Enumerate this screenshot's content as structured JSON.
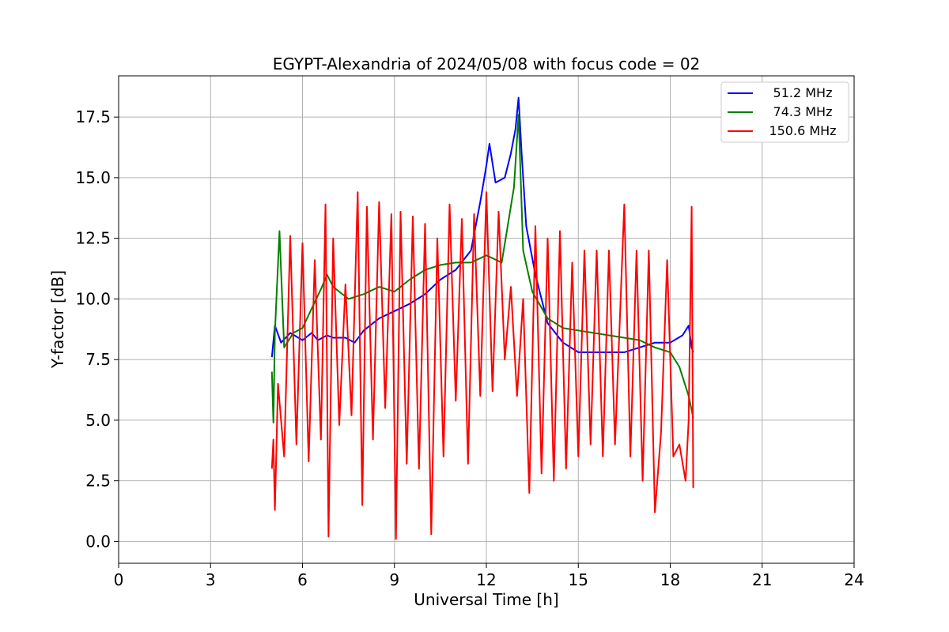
{
  "chart_data": {
    "type": "line",
    "title": "EGYPT-Alexandria of 2024/05/08 with focus code = 02",
    "xlabel": "Universal Time [h]",
    "ylabel": "Y-factor [dB]",
    "xlim": [
      0,
      24
    ],
    "ylim": [
      -0.9,
      19.2
    ],
    "xticks": [
      "0",
      "3",
      "6",
      "9",
      "12",
      "15",
      "18",
      "21",
      "24"
    ],
    "yticks": [
      "0.0",
      "2.5",
      "5.0",
      "7.5",
      "10.0",
      "12.5",
      "15.0",
      "17.5"
    ],
    "grid": true,
    "legend_position": "top-right",
    "series": [
      {
        "name": "51.2 MHz",
        "color": "#0000ff",
        "points": [
          [
            5.0,
            7.6
          ],
          [
            5.1,
            8.9
          ],
          [
            5.3,
            8.2
          ],
          [
            5.6,
            8.6
          ],
          [
            6.0,
            8.3
          ],
          [
            6.3,
            8.6
          ],
          [
            6.5,
            8.3
          ],
          [
            6.8,
            8.5
          ],
          [
            7.0,
            8.4
          ],
          [
            7.4,
            8.4
          ],
          [
            7.7,
            8.2
          ],
          [
            8.0,
            8.7
          ],
          [
            8.5,
            9.2
          ],
          [
            9.0,
            9.5
          ],
          [
            9.5,
            9.8
          ],
          [
            10.0,
            10.2
          ],
          [
            10.5,
            10.8
          ],
          [
            11.0,
            11.2
          ],
          [
            11.5,
            12.0
          ],
          [
            11.8,
            14.0
          ],
          [
            12.0,
            15.5
          ],
          [
            12.1,
            16.4
          ],
          [
            12.3,
            14.8
          ],
          [
            12.6,
            15.0
          ],
          [
            12.8,
            16.0
          ],
          [
            12.95,
            17.0
          ],
          [
            13.05,
            18.3
          ],
          [
            13.15,
            16.0
          ],
          [
            13.3,
            13.0
          ],
          [
            13.6,
            11.0
          ],
          [
            14.0,
            9.0
          ],
          [
            14.5,
            8.2
          ],
          [
            15.0,
            7.8
          ],
          [
            15.5,
            7.8
          ],
          [
            16.0,
            7.8
          ],
          [
            16.5,
            7.8
          ],
          [
            17.0,
            8.0
          ],
          [
            17.5,
            8.2
          ],
          [
            18.0,
            8.2
          ],
          [
            18.4,
            8.5
          ],
          [
            18.6,
            8.9
          ],
          [
            18.7,
            8.0
          ],
          [
            18.75,
            7.8
          ]
        ]
      },
      {
        "name": "74.3 MHz",
        "color": "#008000",
        "points": [
          [
            5.0,
            7.0
          ],
          [
            5.05,
            4.9
          ],
          [
            5.1,
            8.6
          ],
          [
            5.25,
            12.8
          ],
          [
            5.4,
            8.0
          ],
          [
            5.7,
            8.6
          ],
          [
            6.0,
            8.8
          ],
          [
            6.3,
            9.6
          ],
          [
            6.6,
            10.4
          ],
          [
            6.8,
            11.0
          ],
          [
            7.0,
            10.5
          ],
          [
            7.5,
            10.0
          ],
          [
            8.0,
            10.2
          ],
          [
            8.5,
            10.5
          ],
          [
            9.0,
            10.3
          ],
          [
            9.5,
            10.8
          ],
          [
            10.0,
            11.2
          ],
          [
            10.5,
            11.4
          ],
          [
            11.0,
            11.5
          ],
          [
            11.5,
            11.5
          ],
          [
            12.0,
            11.8
          ],
          [
            12.5,
            11.5
          ],
          [
            12.9,
            14.6
          ],
          [
            13.05,
            17.6
          ],
          [
            13.2,
            12.0
          ],
          [
            13.5,
            10.3
          ],
          [
            14.0,
            9.2
          ],
          [
            14.5,
            8.8
          ],
          [
            15.0,
            8.7
          ],
          [
            15.5,
            8.6
          ],
          [
            16.0,
            8.5
          ],
          [
            16.5,
            8.4
          ],
          [
            17.0,
            8.3
          ],
          [
            17.5,
            8.0
          ],
          [
            18.0,
            7.8
          ],
          [
            18.3,
            7.2
          ],
          [
            18.6,
            6.0
          ],
          [
            18.75,
            5.1
          ]
        ]
      },
      {
        "name": "150.6 MHz",
        "color": "#ff0000",
        "points": [
          [
            5.0,
            3.0
          ],
          [
            5.05,
            4.2
          ],
          [
            5.1,
            1.3
          ],
          [
            5.2,
            6.5
          ],
          [
            5.4,
            3.5
          ],
          [
            5.6,
            12.6
          ],
          [
            5.8,
            4.0
          ],
          [
            6.0,
            12.3
          ],
          [
            6.2,
            3.3
          ],
          [
            6.4,
            11.6
          ],
          [
            6.6,
            4.2
          ],
          [
            6.75,
            13.9
          ],
          [
            6.85,
            0.2
          ],
          [
            7.0,
            12.5
          ],
          [
            7.2,
            4.8
          ],
          [
            7.4,
            10.6
          ],
          [
            7.6,
            5.2
          ],
          [
            7.8,
            14.4
          ],
          [
            7.95,
            1.5
          ],
          [
            8.1,
            13.8
          ],
          [
            8.3,
            4.2
          ],
          [
            8.5,
            14.0
          ],
          [
            8.7,
            5.5
          ],
          [
            8.9,
            13.5
          ],
          [
            9.05,
            0.1
          ],
          [
            9.2,
            13.6
          ],
          [
            9.4,
            3.2
          ],
          [
            9.6,
            13.4
          ],
          [
            9.8,
            3.0
          ],
          [
            10.0,
            13.1
          ],
          [
            10.2,
            0.3
          ],
          [
            10.4,
            12.5
          ],
          [
            10.6,
            3.5
          ],
          [
            10.8,
            13.9
          ],
          [
            11.0,
            5.8
          ],
          [
            11.2,
            13.3
          ],
          [
            11.4,
            3.2
          ],
          [
            11.6,
            13.5
          ],
          [
            11.8,
            6.0
          ],
          [
            12.0,
            14.4
          ],
          [
            12.2,
            6.2
          ],
          [
            12.4,
            13.6
          ],
          [
            12.6,
            7.5
          ],
          [
            12.8,
            10.5
          ],
          [
            13.0,
            6.0
          ],
          [
            13.2,
            10.0
          ],
          [
            13.4,
            2.0
          ],
          [
            13.6,
            13.0
          ],
          [
            13.8,
            2.8
          ],
          [
            14.0,
            12.5
          ],
          [
            14.2,
            2.5
          ],
          [
            14.4,
            12.8
          ],
          [
            14.6,
            3.0
          ],
          [
            14.8,
            11.5
          ],
          [
            15.0,
            3.5
          ],
          [
            15.2,
            12.0
          ],
          [
            15.4,
            4.0
          ],
          [
            15.6,
            12.0
          ],
          [
            15.8,
            3.5
          ],
          [
            16.0,
            12.0
          ],
          [
            16.2,
            4.0
          ],
          [
            16.5,
            13.9
          ],
          [
            16.7,
            3.5
          ],
          [
            16.9,
            12.0
          ],
          [
            17.1,
            2.5
          ],
          [
            17.3,
            12.0
          ],
          [
            17.5,
            1.2
          ],
          [
            17.7,
            4.5
          ],
          [
            17.9,
            11.6
          ],
          [
            18.1,
            3.5
          ],
          [
            18.3,
            4.0
          ],
          [
            18.5,
            2.5
          ],
          [
            18.6,
            5.0
          ],
          [
            18.7,
            13.8
          ],
          [
            18.75,
            2.2
          ]
        ]
      }
    ]
  }
}
